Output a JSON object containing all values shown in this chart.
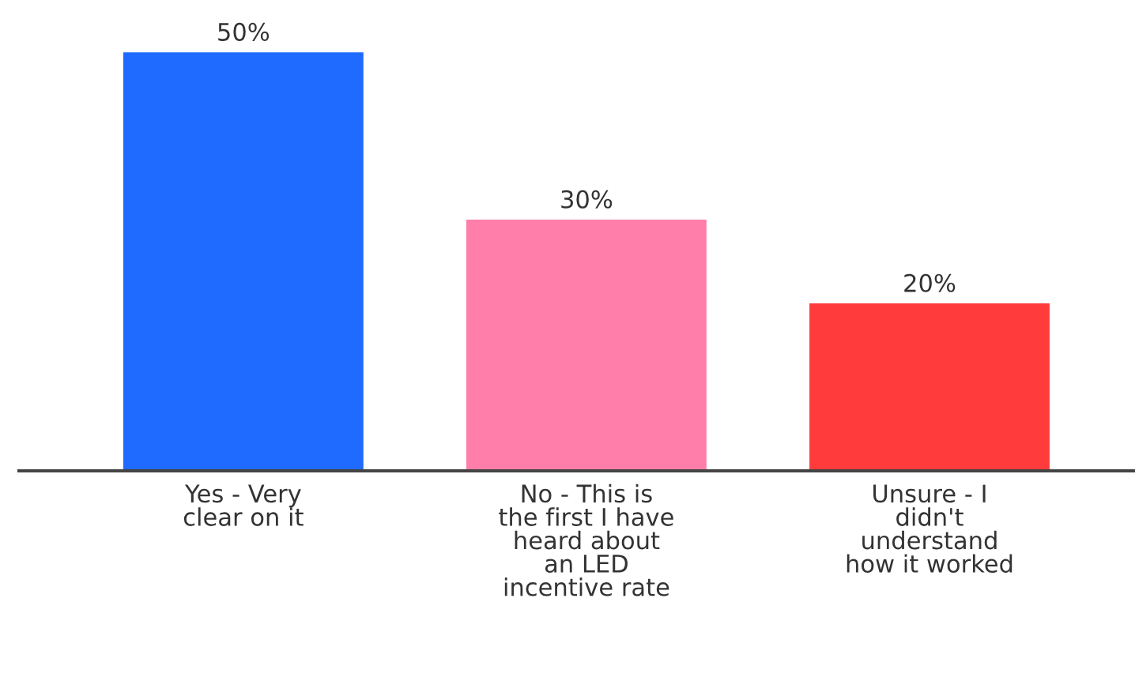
{
  "chart_data": {
    "type": "bar",
    "categories": [
      "Yes - Very\nclear on it",
      "No - This is\nthe first I have\nheard about\nan LED\nincentive rate",
      "Unsure - I\ndidn't\nunderstand\nhow it worked"
    ],
    "values": [
      50,
      30,
      20
    ],
    "colors": [
      "#1f6bff",
      "#ff7eaa",
      "#ff3b3b"
    ],
    "value_labels": [
      "50%",
      "30%",
      "20%"
    ],
    "grid": false
  }
}
